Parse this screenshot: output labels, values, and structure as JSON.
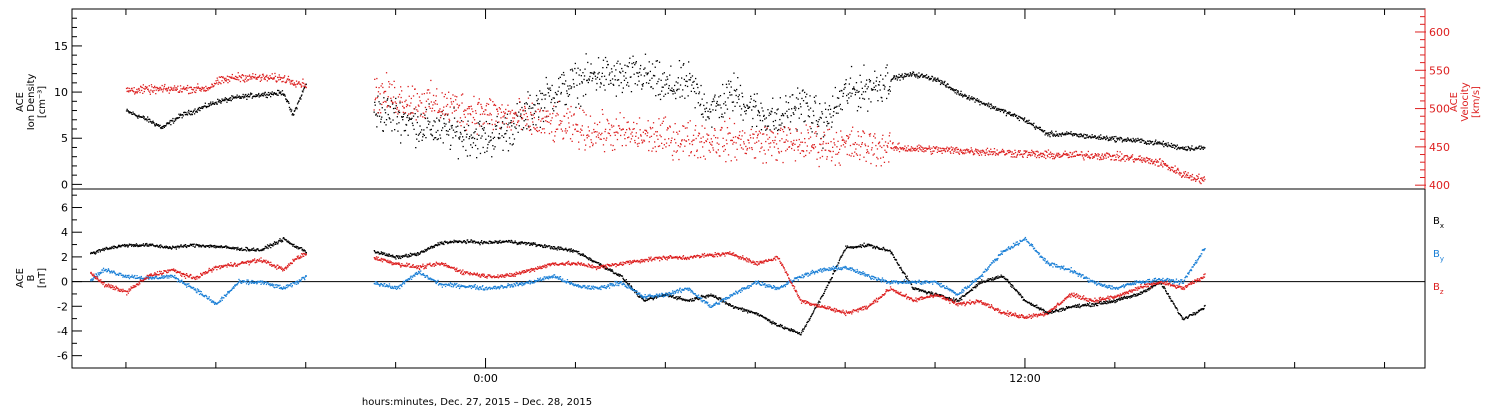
{
  "chart_data": [
    {
      "type": "scatter",
      "ylabel": [
        "ACE",
        "Ion Density",
        "[cm⁻³]"
      ],
      "ylabel_right": [
        "ACE",
        "Velocity",
        "[km/s]"
      ],
      "ylim": [
        -0.5,
        19
      ],
      "yticks": [
        0,
        5,
        10,
        15
      ],
      "ylim_right": [
        395,
        630
      ],
      "yticks_right": [
        400,
        450,
        500,
        550,
        600
      ],
      "xlim": [
        -9.2,
        20.9
      ],
      "x_unit": "hours relative to 2015-12-28 00:00",
      "colors": {
        "density": "#000000",
        "velocity": "#dd2020"
      },
      "series": [
        {
          "key": "density",
          "axis": "left",
          "color": "#000000",
          "spread": 0.4,
          "gaps": [
            [
              -4,
              -2.5
            ]
          ],
          "x": [
            -8,
            -7.5,
            -7.2,
            -6.8,
            -6.5,
            -6,
            -5.5,
            -5,
            -4.5,
            -4.3,
            -4,
            -2.5,
            -2,
            -1.5,
            -1,
            -0.5,
            0,
            0.5,
            1,
            1.5,
            2,
            2.5,
            3,
            3.5,
            4,
            4.5,
            5,
            5.5,
            6,
            6.5,
            7,
            7.5,
            8,
            8.5,
            9,
            9.5,
            10,
            10.5,
            11,
            11.5,
            12,
            12.5,
            13,
            13.5,
            14,
            14.5,
            15,
            15.5,
            16
          ],
          "y": [
            8,
            7,
            6.2,
            7.5,
            8,
            9,
            9.5,
            9.8,
            10,
            7.5,
            11,
            8,
            7.5,
            6.5,
            6,
            5.5,
            5,
            6,
            8,
            10,
            11,
            12,
            11.5,
            12,
            10.5,
            11,
            8,
            10,
            8,
            7,
            9,
            6.5,
            10,
            10.5,
            11.5,
            12,
            11.5,
            10,
            9,
            8,
            7,
            5.5,
            5.5,
            5.2,
            5,
            4.8,
            4.5,
            4,
            4
          ]
        },
        {
          "key": "velocity",
          "axis": "right",
          "color": "#dd2020",
          "spread": 8,
          "gaps": [
            [
              -4,
              -2.5
            ]
          ],
          "x": [
            -8,
            -7,
            -6.2,
            -6,
            -5.7,
            -5.5,
            -5,
            -4.5,
            -4.2,
            -4,
            -2.5,
            -2,
            -1.5,
            -1,
            -0.5,
            0,
            0.5,
            1,
            1.5,
            2,
            2.5,
            3,
            3.5,
            4,
            4.5,
            5,
            5.5,
            6,
            6.5,
            7,
            7.5,
            8,
            9,
            10,
            11,
            12,
            12.5,
            13,
            13.5,
            14,
            14.5,
            15,
            15.5,
            16
          ],
          "y": [
            525,
            526,
            527,
            535,
            540,
            542,
            541,
            540,
            535,
            532,
            520,
            515,
            510,
            505,
            500,
            495,
            490,
            485,
            480,
            475,
            470,
            468,
            465,
            463,
            461,
            460,
            458,
            457,
            456,
            455,
            454,
            452,
            450,
            447,
            445,
            442,
            440,
            440,
            440,
            438,
            435,
            430,
            415,
            407
          ]
        }
      ]
    },
    {
      "type": "scatter",
      "ylabel": [
        "ACE",
        "B",
        "[nT]"
      ],
      "ylim": [
        -7,
        7.5
      ],
      "yticks": [
        -6,
        -4,
        -2,
        0,
        2,
        4,
        6
      ],
      "xlim": [
        -9.2,
        20.9
      ],
      "xticks": [
        0,
        12
      ],
      "xticklabels": [
        "0:00",
        "12:00"
      ],
      "xlabel": "hours:minutes, Dec. 27, 2015 – Dec. 28, 2015",
      "colors": {
        "bx": "#000000",
        "by": "#1a7fd6",
        "bz": "#dd2020"
      },
      "legend_position": "right",
      "series": [
        {
          "key": "bx",
          "name": "B",
          "subscript": "x",
          "color": "#000000",
          "spread": 0.2,
          "gaps": [
            [
              -4,
              -2.5
            ]
          ],
          "x": [
            -8.8,
            -8.5,
            -8,
            -7.5,
            -7,
            -6.5,
            -6,
            -5.5,
            -5,
            -4.5,
            -4.3,
            -4,
            -2.5,
            -2,
            -1.5,
            -1,
            -0.5,
            0,
            0.5,
            1,
            1.5,
            2,
            2.5,
            3,
            3.5,
            4,
            4.5,
            5,
            5.5,
            6,
            6.5,
            7,
            7.5,
            8,
            8.5,
            9,
            9.5,
            10,
            10.5,
            11,
            11.5,
            12,
            12.5,
            13,
            13.5,
            14,
            14.5,
            15,
            15.5,
            16
          ],
          "y": [
            2.3,
            2.7,
            3,
            3,
            2.8,
            3,
            2.9,
            2.7,
            2.6,
            3.5,
            3,
            2.5,
            2.5,
            2,
            2.3,
            3.2,
            3.3,
            3.2,
            3.3,
            3.1,
            2.8,
            2.5,
            1.5,
            0.5,
            -1.5,
            -1,
            -1.5,
            -1,
            -2,
            -2.5,
            -3.5,
            -4.2,
            -1,
            2.8,
            3,
            2.5,
            -0.5,
            -1,
            -1.5,
            0,
            0.5,
            -1.5,
            -2.5,
            -2,
            -1.8,
            -1.5,
            -1,
            0,
            -3,
            -2
          ]
        },
        {
          "key": "by",
          "name": "B",
          "subscript": "y",
          "color": "#1a7fd6",
          "spread": 0.25,
          "gaps": [
            [
              -4,
              -2.5
            ]
          ],
          "x": [
            -8.8,
            -8.5,
            -8,
            -7.5,
            -7,
            -6.5,
            -6,
            -5.5,
            -5,
            -4.5,
            -4.2,
            -4,
            -2.5,
            -2,
            -1.5,
            -1,
            -0.5,
            0,
            0.5,
            1,
            1.5,
            2,
            2.5,
            3,
            3.5,
            4,
            4.5,
            5,
            5.5,
            6,
            6.5,
            7,
            7.5,
            8,
            8.5,
            9,
            9.5,
            10,
            10.5,
            11,
            11.5,
            12,
            12.5,
            13,
            13.5,
            14,
            14.5,
            15,
            15.5,
            16
          ],
          "y": [
            0.2,
            1,
            0.5,
            0.3,
            0.5,
            -0.5,
            -1.8,
            0,
            0,
            -0.5,
            0,
            0.5,
            0,
            -0.5,
            0.8,
            -0.2,
            -0.3,
            -0.5,
            -0.3,
            0,
            0.5,
            -0.3,
            -0.5,
            0,
            -1.2,
            -1,
            -0.5,
            -2,
            -1,
            0,
            -0.5,
            0.5,
            1,
            1.2,
            0.5,
            0,
            0,
            0,
            -1,
            0.5,
            2.5,
            3.5,
            1.5,
            1,
            0,
            -0.5,
            0,
            0.2,
            0,
            2.8
          ]
        },
        {
          "key": "bz",
          "name": "B",
          "subscript": "z",
          "color": "#dd2020",
          "spread": 0.25,
          "gaps": [
            [
              -4,
              -2.5
            ]
          ],
          "x": [
            -8.8,
            -8.5,
            -8,
            -7.5,
            -7,
            -6.5,
            -6,
            -5.5,
            -5,
            -4.5,
            -4.2,
            -4,
            -2.5,
            -2,
            -1.5,
            -1,
            -0.5,
            0,
            0.5,
            1,
            1.5,
            2,
            2.5,
            3,
            3.5,
            4,
            4.5,
            5,
            5.5,
            6,
            6.5,
            7,
            7.5,
            8,
            8.5,
            9,
            9.5,
            10,
            10.5,
            11,
            11.5,
            12,
            12.5,
            13,
            13.5,
            14,
            14.5,
            15,
            15.5,
            16
          ],
          "y": [
            0.8,
            -0.2,
            -0.8,
            0.5,
            1,
            0.3,
            1.2,
            1.5,
            1.8,
            1,
            2,
            2.3,
            2,
            1.5,
            1.2,
            1.5,
            0.8,
            0.5,
            0.5,
            1,
            1.5,
            1.5,
            1.2,
            1.5,
            1.8,
            2,
            2,
            2.2,
            2.3,
            1.5,
            2,
            -1.5,
            -2,
            -2.5,
            -2,
            -0.5,
            -1.5,
            -1,
            -1.8,
            -1.5,
            -2.5,
            -2.8,
            -2.5,
            -1,
            -1.5,
            -1.2,
            -0.5,
            0,
            -0.5,
            0.5
          ]
        }
      ]
    }
  ]
}
